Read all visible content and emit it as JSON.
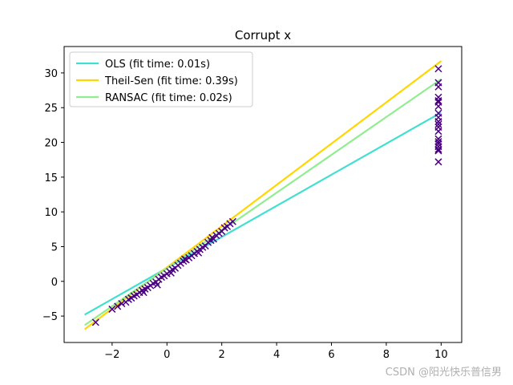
{
  "watermark": "CSDN @阳光快乐普信男",
  "chart_data": {
    "type": "scatter",
    "title": "Corrupt x",
    "xlabel": "",
    "ylabel": "",
    "xlim": [
      -3.75,
      10.75
    ],
    "ylim": [
      -8.8,
      33.8
    ],
    "xticks": [
      -2,
      0,
      2,
      4,
      6,
      8,
      10
    ],
    "yticks": [
      -5,
      0,
      5,
      10,
      15,
      20,
      25,
      30
    ],
    "grid": false,
    "legend_position": "top-left",
    "colors": {
      "OLS": "#40e0d0",
      "Theil-Sen": "#ffd700",
      "RANSAC": "#90ee90",
      "points": "#4b0082"
    },
    "lines": [
      {
        "name": "OLS (fit time: 0.01s)",
        "key": "OLS",
        "x": [
          -3,
          10
        ],
        "y": [
          -4.8,
          24.3
        ]
      },
      {
        "name": "Theil-Sen (fit time: 0.39s)",
        "key": "Theil-Sen",
        "x": [
          -3,
          10
        ],
        "y": [
          -6.9,
          31.7
        ]
      },
      {
        "name": "RANSAC (fit time: 0.02s)",
        "key": "RANSAC",
        "x": [
          -3,
          10
        ],
        "y": [
          -6.3,
          29.1
        ]
      }
    ],
    "inlier_points": {
      "x": [
        -2.6,
        -2.0,
        -1.8,
        -1.65,
        -1.5,
        -1.4,
        -1.3,
        -1.2,
        -1.1,
        -1.0,
        -0.9,
        -0.8,
        -0.7,
        -0.6,
        -0.5,
        -0.4,
        -0.3,
        -0.2,
        -0.1,
        0.0,
        0.1,
        0.2,
        0.3,
        0.4,
        0.5,
        0.6,
        0.7,
        0.8,
        0.9,
        1.0,
        1.1,
        1.2,
        1.3,
        1.4,
        1.5,
        1.6,
        1.7,
        1.8,
        1.9,
        2.0,
        2.1,
        2.2,
        2.3,
        2.4,
        -0.85,
        -0.35,
        0.15,
        0.65,
        1.15,
        1.65
      ],
      "y": [
        -5.9,
        -4.0,
        -3.6,
        -3.2,
        -3.0,
        -2.6,
        -2.4,
        -2.1,
        -1.9,
        -1.6,
        -1.3,
        -1.1,
        -0.9,
        -0.6,
        -0.3,
        -0.1,
        0.3,
        0.6,
        0.8,
        1.1,
        1.4,
        1.7,
        1.9,
        2.3,
        2.6,
        2.9,
        3.1,
        3.4,
        3.7,
        4.0,
        4.3,
        4.6,
        4.9,
        5.1,
        5.6,
        5.9,
        6.1,
        6.6,
        6.9,
        7.2,
        7.7,
        7.9,
        8.3,
        8.6,
        -1.6,
        -0.5,
        1.2,
        3.2,
        4.1,
        6.3
      ]
    },
    "outlier_points": {
      "x": [
        9.9,
        9.9,
        9.9,
        9.9,
        9.9,
        9.9,
        9.9,
        9.9,
        9.9,
        9.9,
        9.9,
        9.9,
        9.9,
        9.9,
        9.9,
        9.9,
        9.9,
        9.9,
        9.9,
        9.9
      ],
      "y": [
        30.6,
        28.6,
        28.0,
        26.5,
        25.8,
        25.2,
        24.2,
        23.6,
        23.0,
        22.2,
        21.6,
        20.5,
        20.1,
        19.8,
        19.4,
        19.0,
        18.8,
        17.2,
        22.6,
        26.0
      ]
    }
  }
}
